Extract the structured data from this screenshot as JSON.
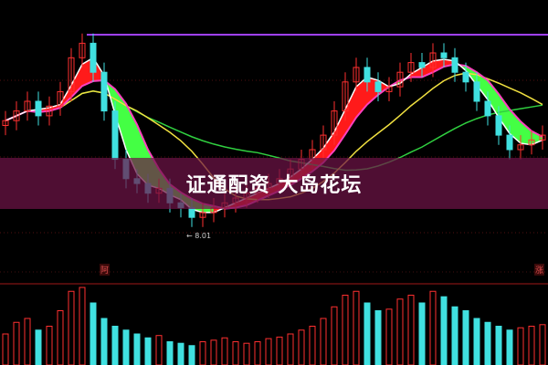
{
  "banner": {
    "text": "证通配资 大岛花坛"
  },
  "low_label": "8.01",
  "panel_tags": {
    "left": "阿",
    "right": "涨"
  },
  "colors": {
    "up": "#ff3030",
    "down": "#40e0e0",
    "ribbon_up": "#ff1a1a",
    "ribbon_down": "#44ff44",
    "ma_short": "#ffffff",
    "ma_mid": "#ff40c0",
    "ma_long": "#f0e040",
    "ma_trend": "#30d040",
    "level": "#a040ff",
    "banner": "#6e1446"
  },
  "chart_data": {
    "type": "candlestick",
    "title": "",
    "xlabel": "",
    "ylabel": "",
    "ylim": [
      7.6,
      12.6
    ],
    "low_marker": 8.01,
    "close": [
      10.2,
      10.4,
      10.6,
      10.3,
      10.5,
      10.8,
      11.5,
      11.8,
      11.2,
      10.4,
      9.4,
      9.0,
      8.9,
      8.7,
      8.8,
      8.5,
      8.4,
      8.2,
      8.3,
      8.4,
      8.5,
      8.6,
      8.7,
      8.8,
      8.9,
      9.0,
      9.2,
      9.4,
      9.6,
      9.9,
      10.4,
      11.0,
      11.3,
      11.0,
      10.8,
      10.9,
      11.2,
      11.4,
      11.3,
      11.6,
      11.5,
      11.2,
      11.0,
      10.6,
      10.3,
      9.9,
      9.6,
      9.7,
      9.8,
      9.9
    ],
    "volume": [
      40,
      55,
      60,
      45,
      50,
      70,
      95,
      100,
      80,
      60,
      50,
      45,
      40,
      35,
      38,
      30,
      28,
      25,
      30,
      32,
      35,
      30,
      28,
      30,
      34,
      36,
      40,
      45,
      50,
      60,
      75,
      90,
      95,
      80,
      70,
      72,
      85,
      90,
      80,
      95,
      88,
      75,
      70,
      60,
      55,
      50,
      45,
      48,
      50,
      52
    ],
    "grid": true
  }
}
